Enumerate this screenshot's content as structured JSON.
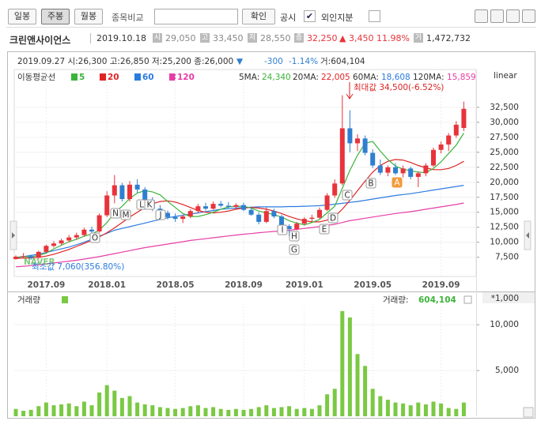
{
  "toolbar": {
    "buttons": [
      "일봉",
      "주봉",
      "월봉"
    ],
    "compare_label": "종목비교",
    "confirm": "확인",
    "checks": [
      {
        "label": "공시",
        "checked": true
      },
      {
        "label": "외인지분",
        "checked": false
      }
    ]
  },
  "header": {
    "name": "크린앤사이언스",
    "date": "2019.10.18",
    "quote": [
      {
        "label": "시",
        "value": "29,050"
      },
      {
        "label": "고",
        "value": "33,450"
      },
      {
        "label": "저",
        "value": "28,550"
      },
      {
        "label": "종",
        "value": "32,250"
      }
    ],
    "change": "▲ 3,450",
    "change_pct": "11.98%",
    "volume_label": "거",
    "volume": "1,472,732"
  },
  "chart_data": {
    "type": "candlestick",
    "info": {
      "ohlc": "2019.09.27 시:26,300 고:26,850 저:25,200 종:26,000",
      "arrow": "▼",
      "change": "-300",
      "change_pct": "-1.14%",
      "volume": "거:604,104"
    },
    "ma_title": "이동평균선",
    "ma_readout": [
      {
        "label": "5MA:",
        "value": "24,340"
      },
      {
        "label": "20MA:",
        "value": "22,005"
      },
      {
        "label": "60MA:",
        "value": "18,608"
      },
      {
        "label": "120MA:",
        "value": "15,859"
      }
    ],
    "scale": "linear",
    "max_label": "최대값 34,500(-6.52%)",
    "min_label": "최소값 7,060(356.80%)",
    "watermark": "NAVER",
    "up_color": "#e8333a",
    "down_color": "#2f7fd0",
    "categories": [
      null,
      null,
      null,
      null,
      "2017.09",
      null,
      null,
      null,
      null,
      null,
      null,
      null,
      "2018.01",
      null,
      null,
      null,
      null,
      null,
      null,
      null,
      null,
      "2018.05",
      null,
      null,
      null,
      null,
      null,
      null,
      null,
      null,
      "2018.09",
      null,
      null,
      null,
      null,
      null,
      null,
      null,
      "2019.01",
      null,
      null,
      null,
      null,
      null,
      null,
      null,
      null,
      "2019.05",
      null,
      null,
      null,
      null,
      null,
      null,
      null,
      null,
      "2019.09",
      null,
      null,
      null
    ],
    "candles": [
      [
        7200,
        7800,
        7100,
        7600
      ],
      [
        7600,
        8200,
        7400,
        7700
      ],
      [
        7700,
        7900,
        7060,
        7400
      ],
      [
        7400,
        8600,
        7300,
        8400
      ],
      [
        8400,
        9600,
        8200,
        9400
      ],
      [
        9400,
        10200,
        9100,
        9800
      ],
      [
        9800,
        10600,
        9500,
        10300
      ],
      [
        10300,
        11200,
        10000,
        10800
      ],
      [
        10800,
        11600,
        10400,
        11200
      ],
      [
        11200,
        12400,
        10900,
        12100
      ],
      [
        12100,
        12600,
        11500,
        11800
      ],
      [
        11800,
        14800,
        11600,
        14500
      ],
      [
        14500,
        18500,
        14200,
        17800
      ],
      [
        17800,
        21200,
        16500,
        19500
      ],
      [
        19500,
        19900,
        16800,
        17200
      ],
      [
        17200,
        20200,
        16800,
        19600
      ],
      [
        19600,
        20500,
        18200,
        18800
      ],
      [
        18800,
        19200,
        16600,
        17000
      ],
      [
        17000,
        17500,
        15200,
        15600
      ],
      [
        15600,
        16200,
        14600,
        14900
      ],
      [
        14900,
        15300,
        13800,
        14200
      ],
      [
        14200,
        14800,
        13400,
        13900
      ],
      [
        13900,
        14600,
        13200,
        14300
      ],
      [
        14300,
        15500,
        14000,
        15200
      ],
      [
        15200,
        16400,
        14800,
        16000
      ],
      [
        16000,
        16600,
        15300,
        15600
      ],
      [
        15600,
        16800,
        15400,
        16400
      ],
      [
        16400,
        16900,
        15800,
        16100
      ],
      [
        16100,
        16700,
        15600,
        15900
      ],
      [
        15900,
        16500,
        15400,
        16200
      ],
      [
        16200,
        16600,
        15200,
        15400
      ],
      [
        15400,
        15800,
        14400,
        14600
      ],
      [
        14600,
        15000,
        13000,
        13400
      ],
      [
        13400,
        15800,
        13200,
        15200
      ],
      [
        15200,
        15600,
        14000,
        14300
      ],
      [
        14300,
        14600,
        12400,
        12700
      ],
      [
        12700,
        13000,
        11000,
        12200
      ],
      [
        12200,
        13400,
        12000,
        13100
      ],
      [
        13100,
        14200,
        12800,
        13900
      ],
      [
        13900,
        14600,
        13500,
        14100
      ],
      [
        14100,
        15800,
        13900,
        15400
      ],
      [
        15400,
        18200,
        15200,
        17800
      ],
      [
        17800,
        20500,
        17400,
        19800
      ],
      [
        19800,
        34500,
        19500,
        29000
      ],
      [
        29000,
        32000,
        25000,
        26500
      ],
      [
        26500,
        28000,
        25200,
        27300
      ],
      [
        27300,
        27800,
        24500,
        24900
      ],
      [
        24900,
        25500,
        22400,
        22800
      ],
      [
        22800,
        23800,
        21200,
        21600
      ],
      [
        21600,
        22800,
        21000,
        22500
      ],
      [
        22500,
        23200,
        21200,
        21500
      ],
      [
        21500,
        22800,
        20800,
        22300
      ],
      [
        22300,
        22600,
        20500,
        20900
      ],
      [
        20900,
        21800,
        19200,
        21500
      ],
      [
        21500,
        23200,
        21000,
        22800
      ],
      [
        22800,
        25800,
        22500,
        25400
      ],
      [
        25400,
        26800,
        24800,
        26300
      ],
      [
        26300,
        28200,
        25200,
        27800
      ],
      [
        27800,
        30200,
        27400,
        29600
      ],
      [
        29050,
        33450,
        28550,
        32250
      ]
    ],
    "series": [
      {
        "name": "5",
        "color": "#3cb43c",
        "values": [
          7500,
          7600,
          7550,
          7800,
          8200,
          8900,
          9500,
          10100,
          10500,
          11000,
          11400,
          12000,
          13300,
          14900,
          16000,
          17300,
          18200,
          18600,
          18400,
          17900,
          16800,
          15800,
          14800,
          14300,
          14300,
          14600,
          15000,
          15500,
          15900,
          16000,
          16000,
          15700,
          15200,
          14900,
          14600,
          14200,
          13600,
          13200,
          12900,
          13300,
          13800,
          14900,
          16000,
          19000,
          22000,
          24500,
          26500,
          26800,
          25200,
          23800,
          22700,
          22200,
          21900,
          21700,
          21600,
          22300,
          23400,
          24800,
          26200,
          28200
        ]
      },
      {
        "name": "20",
        "color": "#e02424",
        "values": [
          7300,
          7350,
          7400,
          7500,
          7700,
          8000,
          8400,
          8800,
          9300,
          9800,
          10300,
          10900,
          11600,
          12400,
          13300,
          14200,
          15000,
          15800,
          16400,
          16800,
          16900,
          16700,
          16300,
          15800,
          15300,
          15000,
          14900,
          15000,
          15200,
          15500,
          15700,
          15800,
          15700,
          15500,
          15200,
          14800,
          14300,
          13900,
          13600,
          13400,
          13400,
          13700,
          14300,
          15500,
          17000,
          18600,
          20200,
          21700,
          22800,
          23500,
          23800,
          23700,
          23300,
          22800,
          22400,
          22100,
          22100,
          22300,
          22800,
          23500
        ]
      },
      {
        "name": "60",
        "color": "#2b7be0",
        "values": [
          7400,
          7600,
          7800,
          8000,
          8300,
          8600,
          8900,
          9200,
          9600,
          10000,
          10500,
          11000,
          11500,
          12000,
          12300,
          12600,
          12900,
          13200,
          13500,
          13800,
          14100,
          14300,
          14500,
          14700,
          14900,
          15100,
          15300,
          15500,
          15600,
          15700,
          15800,
          15850,
          15900,
          15900,
          15900,
          15900,
          15950,
          15950,
          16000,
          16050,
          16100,
          16200,
          16350,
          16500,
          16650,
          16800,
          17000,
          17200,
          17400,
          17600,
          17800,
          17950,
          18100,
          18300,
          18500,
          18700,
          18900,
          19100,
          19300,
          19500
        ]
      },
      {
        "name": "120",
        "color": "#e63ea6",
        "values": [
          5900,
          6000,
          6100,
          6250,
          6400,
          6550,
          6700,
          6850,
          7000,
          7200,
          7400,
          7600,
          7850,
          8100,
          8350,
          8600,
          8850,
          9100,
          9300,
          9500,
          9700,
          9900,
          10100,
          10300,
          10450,
          10600,
          10750,
          10900,
          11050,
          11200,
          11350,
          11450,
          11600,
          11700,
          11800,
          11900,
          12000,
          12150,
          12300,
          12450,
          12600,
          12800,
          13000,
          13300,
          13600,
          13800,
          14000,
          14200,
          14400,
          14600,
          14800,
          14950,
          15100,
          15300,
          15500,
          15700,
          15900,
          16100,
          16300,
          16550
        ]
      }
    ],
    "ylim": [
      4300,
      38800
    ],
    "yticks": [
      {
        "value": 7500,
        "label": "7,500"
      },
      {
        "value": 10000,
        "label": "10,000"
      },
      {
        "value": 12500,
        "label": "12,500"
      },
      {
        "value": 15000,
        "label": "15,000"
      },
      {
        "value": 17500,
        "label": "17,500"
      },
      {
        "value": 20000,
        "label": "20,000"
      },
      {
        "value": 22500,
        "label": "22,500"
      },
      {
        "value": 25000,
        "label": "25,000"
      },
      {
        "value": 27500,
        "label": "27,500"
      },
      {
        "value": 30000,
        "label": "30,000"
      },
      {
        "value": 32500,
        "label": "32,500"
      }
    ],
    "events": [
      "O",
      "N",
      "M",
      "L",
      "K",
      "J",
      "I",
      "H",
      "G",
      "E",
      "D",
      "C",
      "B",
      "A"
    ],
    "volume_title": "거래량",
    "volume_readout": {
      "label": "거래량:",
      "value": "604,104"
    },
    "volume_unit": "*1,000",
    "volume_color": "#7ac943",
    "volume": [
      800,
      600,
      700,
      1100,
      1500,
      1200,
      1300,
      1400,
      1100,
      1600,
      1200,
      2600,
      3400,
      2800,
      2000,
      2200,
      1500,
      1300,
      1200,
      1000,
      900,
      800,
      900,
      1100,
      1200,
      900,
      1000,
      800,
      700,
      800,
      700,
      800,
      1000,
      1200,
      900,
      1000,
      1100,
      800,
      900,
      800,
      1200,
      2400,
      3000,
      11500,
      10800,
      6800,
      5500,
      3000,
      2200,
      1800,
      1500,
      1400,
      1200,
      1500,
      1300,
      1600,
      1400,
      900,
      800,
      1500
    ],
    "vlim": [
      0,
      12000
    ],
    "vticks": [
      {
        "value": 5000,
        "label": "5,000"
      },
      {
        "value": 10000,
        "label": "10,000"
      }
    ]
  }
}
